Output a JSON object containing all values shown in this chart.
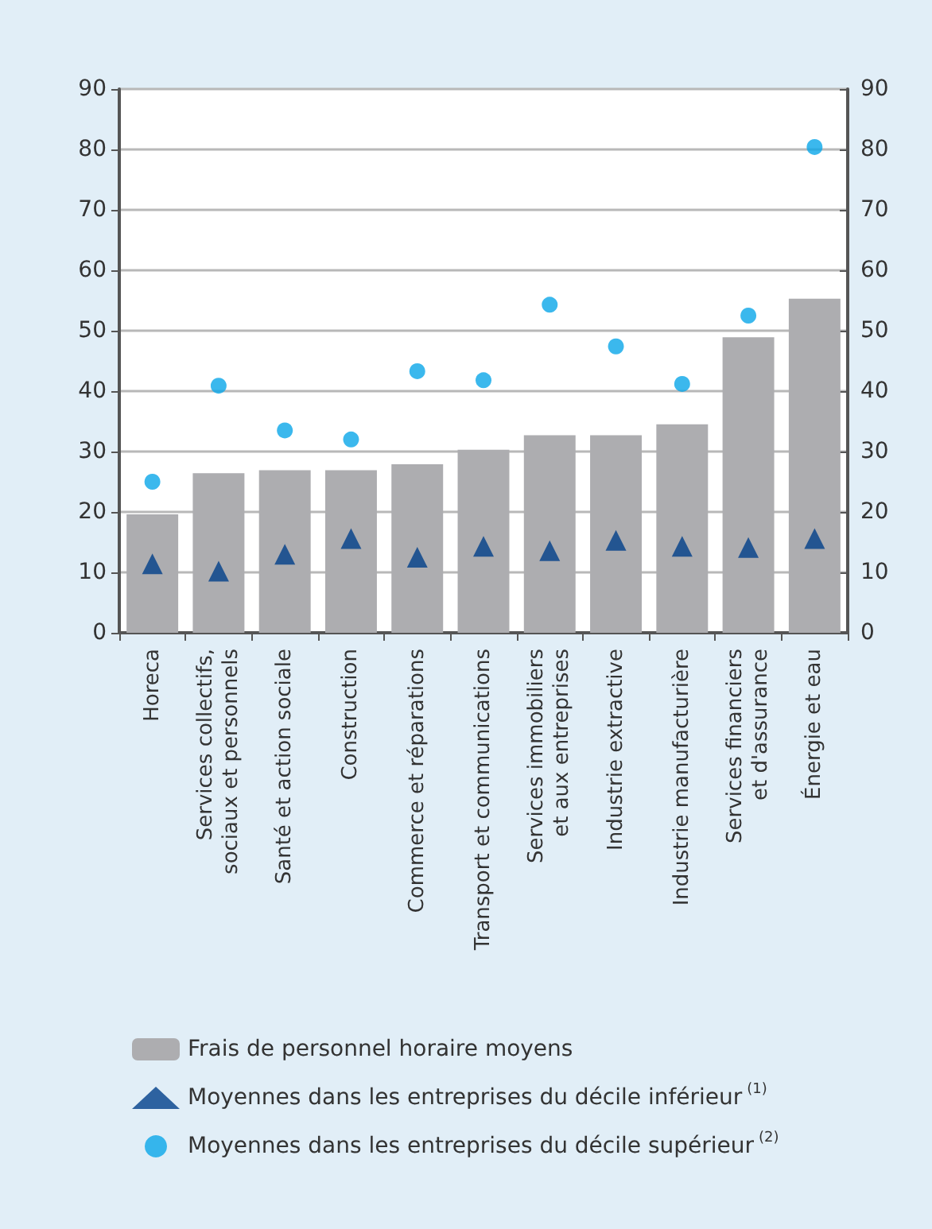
{
  "chart_data": {
    "type": "bar",
    "categories": [
      "Horeca",
      "Services collectifs,\nsociaux et personnels",
      "Santé et action sociale",
      "Construction",
      "Commerce et réparations",
      "Transport et communications",
      "Services immobiliers\net aux entreprises",
      "Industrie extractive",
      "Industrie manufacturière",
      "Services financiers\net d'assurance",
      "Énergie et eau"
    ],
    "series": [
      {
        "name": "Frais de personnel horaire moyens",
        "color": "#adadb0",
        "values": [
          19.6,
          26.4,
          26.9,
          26.9,
          27.9,
          30.3,
          32.7,
          32.7,
          34.5,
          48.9,
          55.3
        ]
      },
      {
        "name": "Moyennes dans les entreprises du décile inférieur$^{(1)}$",
        "type": "scatter",
        "marker": "triangle",
        "color": "#003f8a",
        "x": [
          "Horeca",
          "Services collectifs,\nsociaux et personnels",
          "Santé et action sociale",
          "Construction",
          "Commerce et réparations",
          "Transport et communications",
          "Services immobiliers\net aux entreprises",
          "Industrie extractive",
          "Industrie manufacturière",
          "Services financiers\net d'assurance",
          "Énergie et eau"
        ],
        "values": [
          11.4,
          10.2,
          13.0,
          15.6,
          12.5,
          14.3,
          13.6,
          15.3,
          14.3,
          14.1,
          15.6
        ]
      },
      {
        "name": "Moyennes dans les entreprises du décile supérieur$^{(2)}$",
        "type": "scatter",
        "marker": "circle",
        "color": "#0aa6e8",
        "x": [
          "Horeca",
          "Services collectifs,\nsociaux et personnels",
          "Santé et action sociale",
          "Construction",
          "Commerce et réparations",
          "Transport et communications",
          "Services immobiliers\net aux entreprises",
          "Industrie extractive",
          "Industrie manufacturière",
          "Services financiers\net d'assurance",
          "Énergie et eau"
        ],
        "values": [
          25.0,
          40.9,
          33.5,
          32.0,
          43.3,
          41.8,
          54.3,
          47.4,
          41.2,
          52.5,
          80.4
        ]
      }
    ],
    "ylim": [
      0,
      90
    ],
    "yticks": [
      0,
      10,
      20,
      30,
      40,
      50,
      60,
      70,
      80,
      90
    ],
    "y2lim": [
      0,
      90
    ],
    "y2ticks": [
      0,
      10,
      20,
      30,
      40,
      50,
      60,
      70,
      80,
      90
    ],
    "grid": "y",
    "legend": "bottom"
  }
}
